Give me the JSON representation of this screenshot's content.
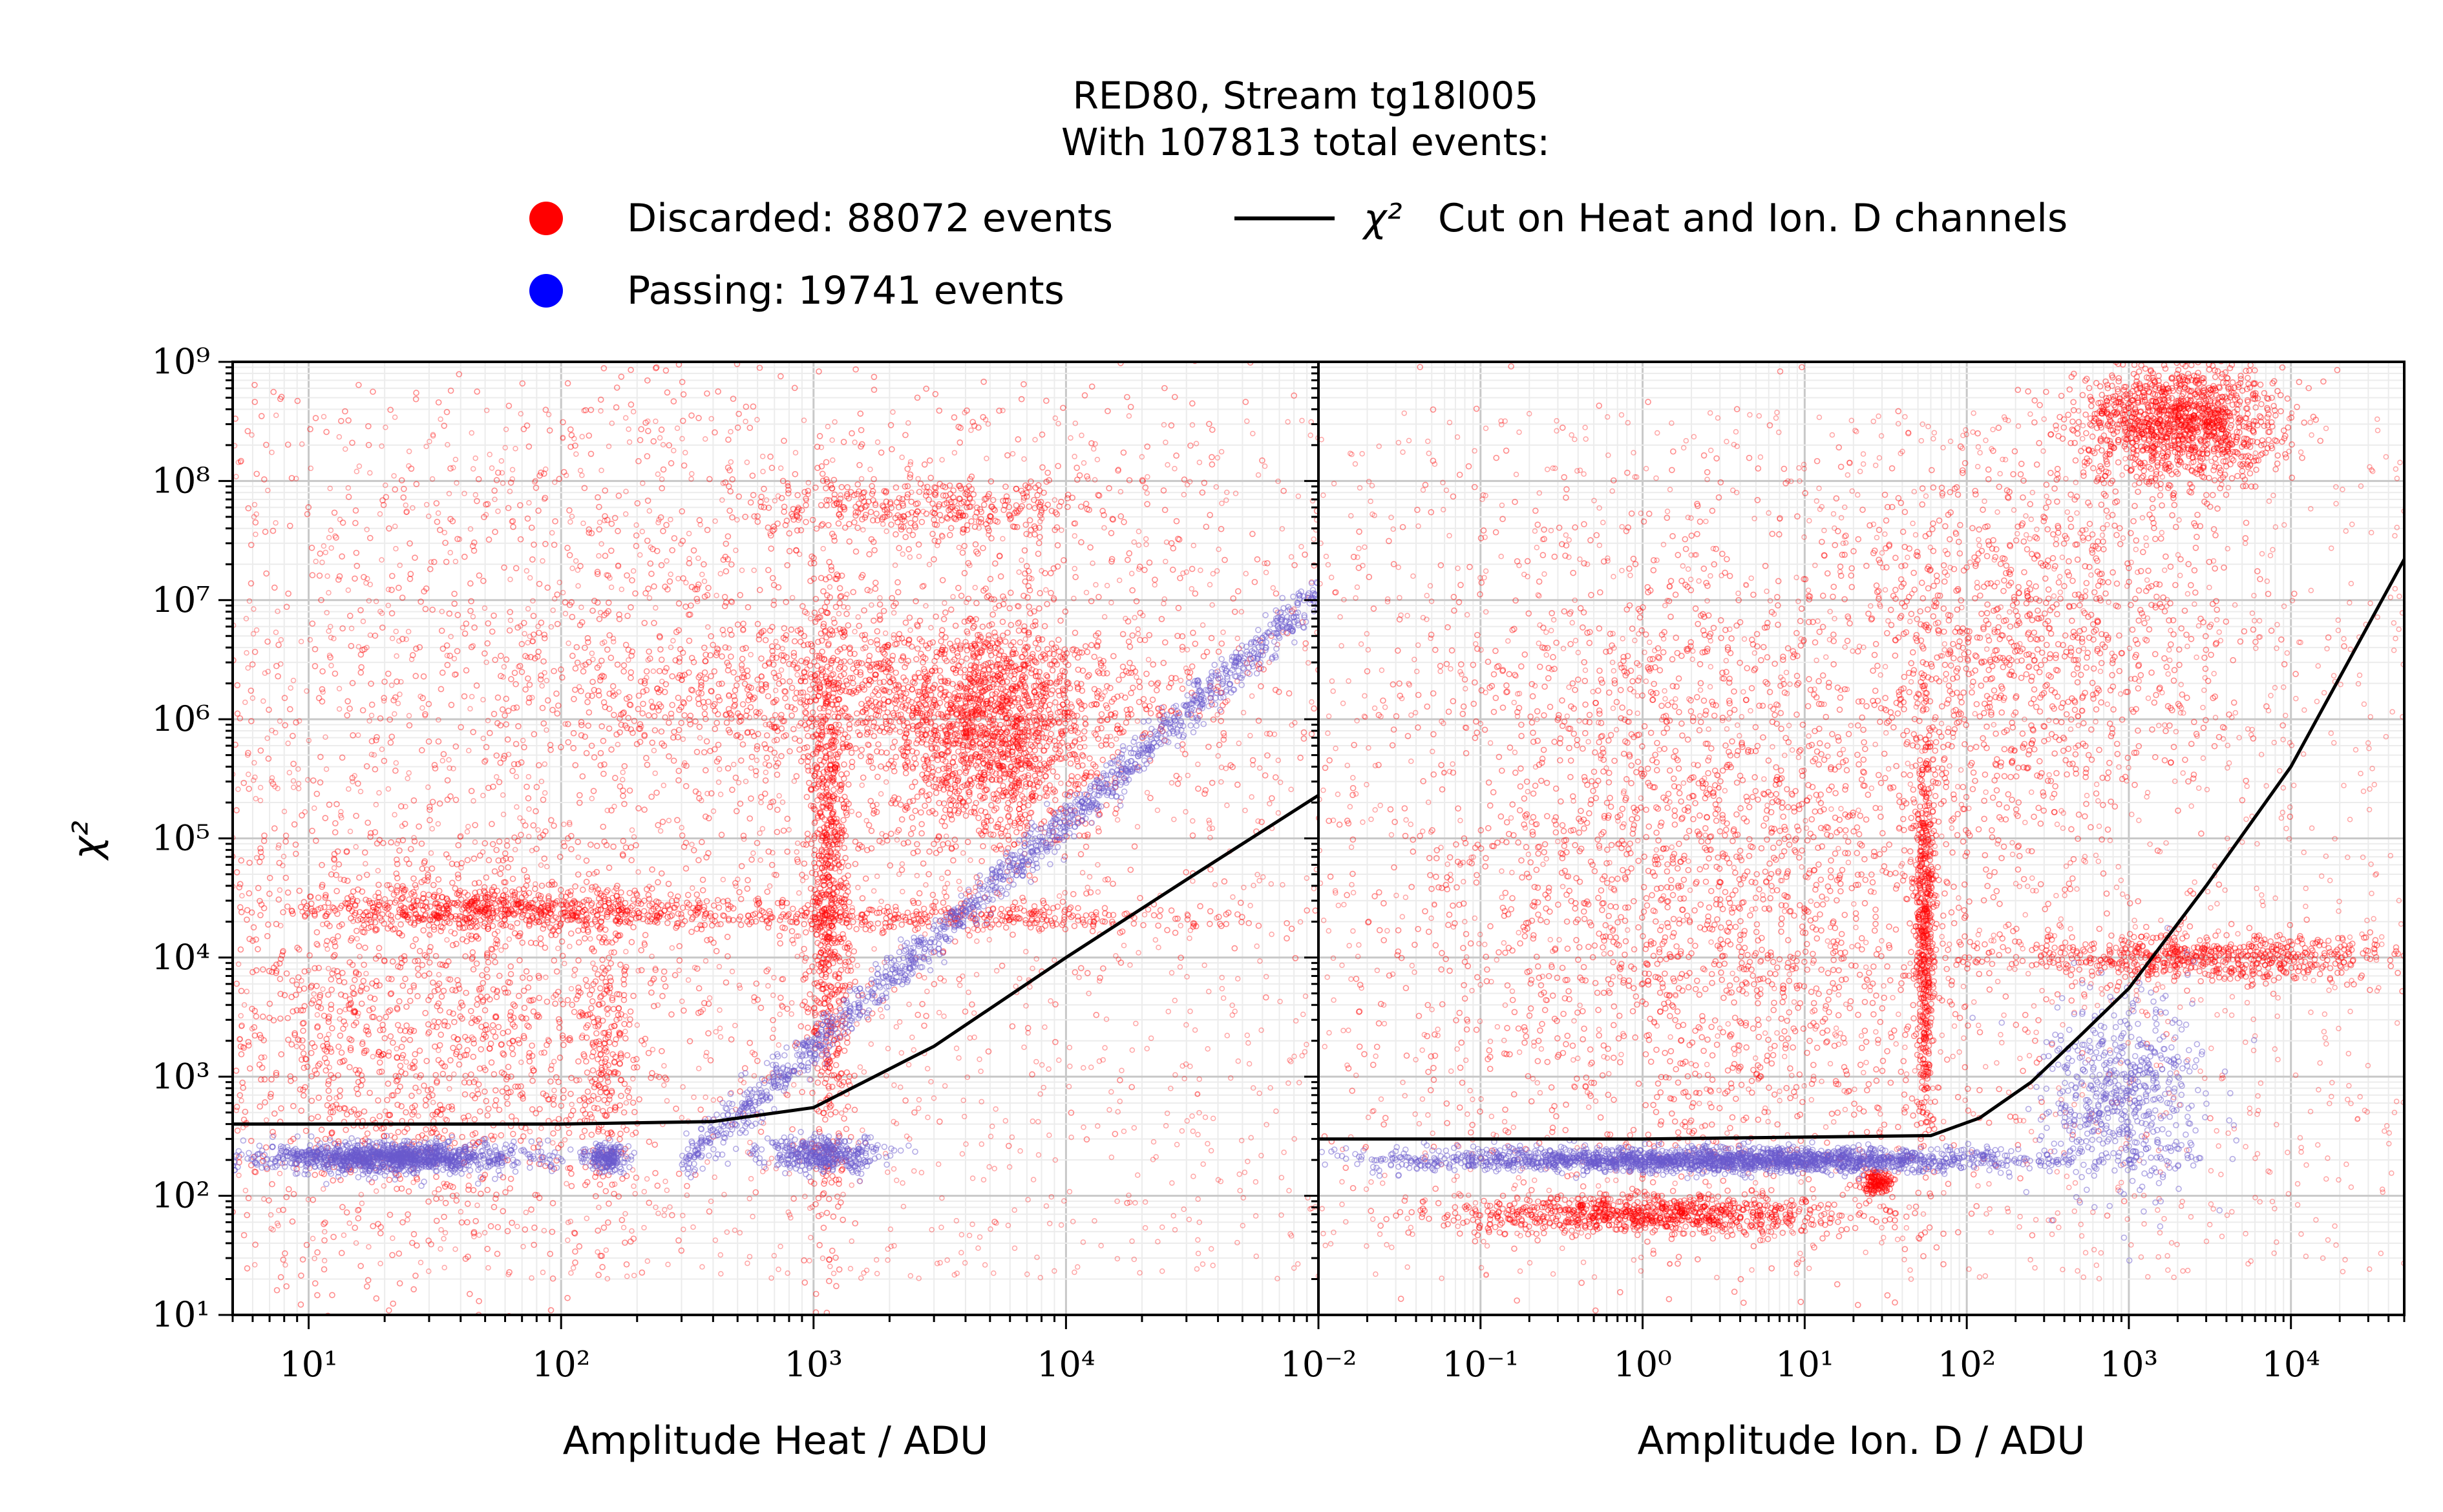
{
  "title_line1": "RED80, Stream tg18l005",
  "title_line2": "With 107813 total events:",
  "legend": {
    "discarded": "Discarded: 88072 events",
    "passing": "Passing: 19741 events",
    "cut": "Cut on Heat and Ion. D channels",
    "cut_symbol": "χ²"
  },
  "colors": {
    "discarded": "#ff0000",
    "passing": "#6a5acd",
    "passing_legend": "#0000ff",
    "cut": "#000000"
  },
  "chart_data": [
    {
      "type": "scatter",
      "panel": "left",
      "xlabel": "Amplitude Heat / ADU",
      "ylabel": "χ²",
      "x_scale": "log",
      "y_scale": "log",
      "xlim": [
        5,
        100000
      ],
      "ylim": [
        10,
        1000000000
      ],
      "x_ticks": [
        "10¹",
        "10²",
        "10³",
        "10⁴"
      ],
      "y_ticks": [
        "10¹",
        "10²",
        "10³",
        "10⁴",
        "10⁵",
        "10⁶",
        "10⁷",
        "10⁸",
        "10⁹"
      ],
      "grid": true,
      "cut_curve": {
        "type": "line",
        "x": [
          5,
          100,
          400,
          1000,
          3000,
          10000,
          30000,
          100000
        ],
        "y": [
          400,
          400,
          420,
          550,
          1800,
          10000,
          45000,
          230000
        ]
      },
      "discarded_clusters": [
        {
          "x": 25,
          "y": 2000,
          "sx": 0.6,
          "sy": 1.0,
          "n": 1600
        },
        {
          "x": 60,
          "y": 25000,
          "sx": 0.5,
          "sy": 0.08,
          "n": 700
        },
        {
          "x": 1150,
          "y": 30000,
          "sx": 0.04,
          "sy": 1.3,
          "n": 900
        },
        {
          "x": 5000,
          "y": 800000,
          "sx": 0.2,
          "sy": 0.5,
          "n": 1400
        },
        {
          "x": 2000,
          "y": 1500000,
          "sx": 0.7,
          "sy": 0.3,
          "n": 900
        },
        {
          "x": 3000,
          "y": 60000000,
          "sx": 0.35,
          "sy": 0.12,
          "n": 350
        },
        {
          "x": 3000,
          "y": 22000,
          "sx": 0.6,
          "sy": 0.06,
          "n": 400
        },
        {
          "x": 500,
          "y": 3000000,
          "sx": 1.3,
          "sy": 1.6,
          "n": 1800
        },
        {
          "x": 150,
          "y": 1500,
          "sx": 0.05,
          "sy": 0.6,
          "n": 200
        }
      ],
      "passing_clusters": [
        {
          "x": 22,
          "y": 210,
          "sx": 0.25,
          "sy": 0.06,
          "n": 1300
        },
        {
          "x": 150,
          "y": 210,
          "sx": 0.04,
          "sy": 0.06,
          "n": 200
        },
        {
          "x": 1100,
          "y": 220,
          "sx": 0.12,
          "sy": 0.07,
          "n": 400
        },
        {
          "band": true,
          "x0": 300,
          "x1": 100000,
          "y_at_x0": 180,
          "slope": 1.9,
          "n": 1400
        }
      ]
    },
    {
      "type": "scatter",
      "panel": "right",
      "xlabel": "Amplitude Ion. D / ADU",
      "x_scale": "log",
      "y_scale": "log",
      "xlim": [
        0.01,
        50000
      ],
      "ylim": [
        10,
        1000000000
      ],
      "x_ticks": [
        "10⁻²",
        "10⁻¹",
        "10⁰",
        "10¹",
        "10²",
        "10³",
        "10⁴"
      ],
      "grid": true,
      "cut_curve": {
        "type": "line",
        "x": [
          0.01,
          1,
          60,
          120,
          250,
          500,
          1000,
          3000,
          10000,
          50000
        ],
        "y": [
          300,
          300,
          320,
          450,
          900,
          2200,
          5500,
          40000,
          400000,
          22000000
        ]
      },
      "discarded_clusters": [
        {
          "x": 3,
          "y": 60000,
          "sx": 1.1,
          "sy": 1.5,
          "n": 2600
        },
        {
          "x": 1,
          "y": 70,
          "sx": 0.6,
          "sy": 0.08,
          "n": 900
        },
        {
          "x": 55,
          "y": 20000,
          "sx": 0.03,
          "sy": 0.9,
          "n": 600
        },
        {
          "x": 2000,
          "y": 300000000,
          "sx": 0.3,
          "sy": 0.25,
          "n": 1300
        },
        {
          "x": 300,
          "y": 5000000,
          "sx": 0.6,
          "sy": 0.8,
          "n": 900
        },
        {
          "x": 3000,
          "y": 10000,
          "sx": 0.6,
          "sy": 0.1,
          "n": 700
        },
        {
          "x": 28,
          "y": 130,
          "sx": 0.05,
          "sy": 0.05,
          "n": 150
        }
      ],
      "passing_clusters": [
        {
          "x": 3,
          "y": 200,
          "sx": 1.0,
          "sy": 0.05,
          "n": 2200
        },
        {
          "x": 900,
          "y": 700,
          "sx": 0.25,
          "sy": 0.4,
          "n": 600
        }
      ]
    }
  ]
}
